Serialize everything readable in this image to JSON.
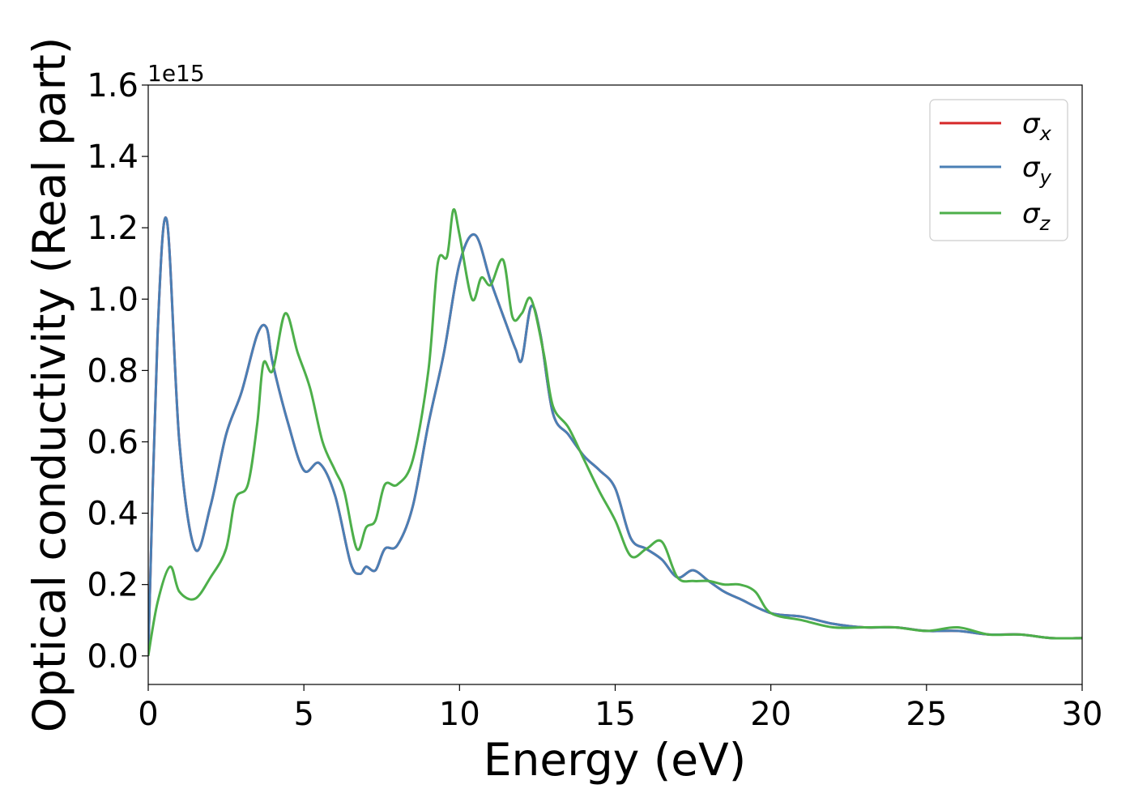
{
  "chart_data": {
    "type": "line",
    "title": "",
    "xlabel": "Energy (eV)",
    "ylabel": "Optical conductivity (Real part)",
    "y_offset_label": "1e15",
    "xlim": [
      0,
      30
    ],
    "ylim": [
      -0.08,
      1.6
    ],
    "xticks": [
      0,
      5,
      10,
      15,
      20,
      25,
      30
    ],
    "xtick_labels": [
      "0",
      "5",
      "10",
      "15",
      "20",
      "25",
      "30"
    ],
    "yticks": [
      0.0,
      0.2,
      0.4,
      0.6,
      0.8,
      1.0,
      1.2,
      1.4,
      1.6
    ],
    "ytick_labels": [
      "0.0",
      "0.2",
      "0.4",
      "0.6",
      "0.8",
      "1.0",
      "1.2",
      "1.4",
      "1.6"
    ],
    "grid": false,
    "legend_position": "top-right",
    "series": [
      {
        "name": "σx",
        "label_base": "σ",
        "label_sub": "x",
        "color": "#d62728",
        "x": [
          0,
          0.3,
          0.6,
          1.0,
          1.5,
          2.0,
          2.5,
          3.0,
          3.5,
          3.8,
          4.0,
          4.5,
          5.0,
          5.5,
          6.0,
          6.5,
          6.8,
          7.0,
          7.3,
          7.6,
          8.0,
          8.5,
          9.0,
          9.5,
          10.0,
          10.5,
          11.0,
          11.5,
          11.8,
          12.0,
          12.3,
          12.6,
          13.0,
          13.5,
          14.0,
          14.5,
          15.0,
          15.5,
          16.0,
          16.5,
          17.0,
          17.5,
          18.0,
          18.5,
          19.0,
          20.0,
          21.0,
          22.0,
          23.0,
          24.0,
          25.0,
          26.0,
          27.0,
          28.0,
          29.0,
          30.0
        ],
        "y": [
          0.0,
          0.9,
          1.22,
          0.6,
          0.3,
          0.42,
          0.62,
          0.74,
          0.9,
          0.92,
          0.82,
          0.65,
          0.52,
          0.54,
          0.45,
          0.26,
          0.23,
          0.25,
          0.24,
          0.3,
          0.31,
          0.42,
          0.65,
          0.85,
          1.1,
          1.18,
          1.05,
          0.93,
          0.86,
          0.83,
          0.98,
          0.9,
          0.68,
          0.62,
          0.56,
          0.52,
          0.47,
          0.33,
          0.3,
          0.27,
          0.22,
          0.24,
          0.21,
          0.18,
          0.16,
          0.12,
          0.11,
          0.09,
          0.08,
          0.08,
          0.07,
          0.07,
          0.06,
          0.06,
          0.05,
          0.05
        ]
      },
      {
        "name": "σy",
        "label_base": "σ",
        "label_sub": "y",
        "color": "#4a7fb5",
        "x": [
          0,
          0.3,
          0.6,
          1.0,
          1.5,
          2.0,
          2.5,
          3.0,
          3.5,
          3.8,
          4.0,
          4.5,
          5.0,
          5.5,
          6.0,
          6.5,
          6.8,
          7.0,
          7.3,
          7.6,
          8.0,
          8.5,
          9.0,
          9.5,
          10.0,
          10.5,
          11.0,
          11.5,
          11.8,
          12.0,
          12.3,
          12.6,
          13.0,
          13.5,
          14.0,
          14.5,
          15.0,
          15.5,
          16.0,
          16.5,
          17.0,
          17.5,
          18.0,
          18.5,
          19.0,
          20.0,
          21.0,
          22.0,
          23.0,
          24.0,
          25.0,
          26.0,
          27.0,
          28.0,
          29.0,
          30.0
        ],
        "y": [
          0.0,
          0.9,
          1.22,
          0.6,
          0.3,
          0.42,
          0.62,
          0.74,
          0.9,
          0.92,
          0.82,
          0.65,
          0.52,
          0.54,
          0.45,
          0.26,
          0.23,
          0.25,
          0.24,
          0.3,
          0.31,
          0.42,
          0.65,
          0.85,
          1.1,
          1.18,
          1.05,
          0.93,
          0.86,
          0.83,
          0.98,
          0.9,
          0.68,
          0.62,
          0.56,
          0.52,
          0.47,
          0.33,
          0.3,
          0.27,
          0.22,
          0.24,
          0.21,
          0.18,
          0.16,
          0.12,
          0.11,
          0.09,
          0.08,
          0.08,
          0.07,
          0.07,
          0.06,
          0.06,
          0.05,
          0.05
        ]
      },
      {
        "name": "σz",
        "label_base": "σ",
        "label_sub": "z",
        "color": "#4daf4a",
        "x": [
          0,
          0.3,
          0.7,
          1.0,
          1.5,
          2.0,
          2.5,
          2.8,
          3.2,
          3.5,
          3.7,
          4.0,
          4.4,
          4.8,
          5.2,
          5.6,
          6.0,
          6.3,
          6.7,
          7.0,
          7.3,
          7.6,
          8.0,
          8.5,
          9.0,
          9.3,
          9.6,
          9.8,
          10.0,
          10.4,
          10.7,
          11.0,
          11.4,
          11.7,
          12.0,
          12.3,
          12.7,
          13.0,
          13.5,
          14.0,
          14.5,
          15.0,
          15.5,
          16.0,
          16.5,
          17.0,
          17.5,
          18.0,
          18.5,
          19.0,
          19.5,
          20.0,
          21.0,
          22.0,
          23.0,
          24.0,
          25.0,
          26.0,
          27.0,
          28.0,
          29.0,
          30.0
        ],
        "y": [
          0.0,
          0.15,
          0.25,
          0.18,
          0.16,
          0.22,
          0.3,
          0.44,
          0.48,
          0.65,
          0.82,
          0.8,
          0.96,
          0.85,
          0.75,
          0.6,
          0.52,
          0.46,
          0.3,
          0.36,
          0.38,
          0.48,
          0.48,
          0.55,
          0.8,
          1.1,
          1.12,
          1.25,
          1.18,
          1.0,
          1.06,
          1.04,
          1.11,
          0.95,
          0.96,
          1.0,
          0.85,
          0.7,
          0.64,
          0.55,
          0.46,
          0.38,
          0.28,
          0.3,
          0.32,
          0.22,
          0.21,
          0.21,
          0.2,
          0.2,
          0.18,
          0.12,
          0.1,
          0.08,
          0.08,
          0.08,
          0.07,
          0.08,
          0.06,
          0.06,
          0.05,
          0.05
        ]
      }
    ]
  }
}
